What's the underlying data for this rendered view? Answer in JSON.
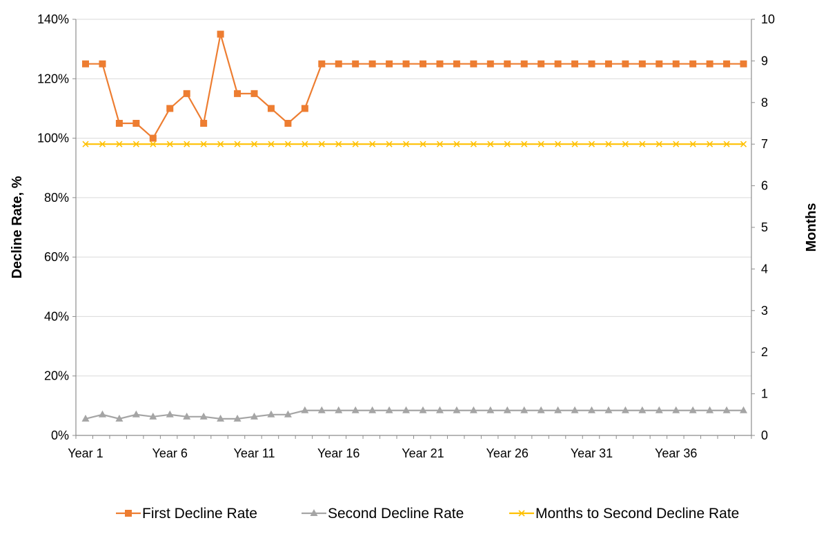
{
  "chart_data": {
    "type": "line",
    "title": "",
    "xlabel": "",
    "ylabel": "Decline Rate, %",
    "y2label": "Months",
    "ylim": [
      0,
      140
    ],
    "y2lim": [
      0,
      10
    ],
    "yticks": [
      "0%",
      "20%",
      "40%",
      "60%",
      "80%",
      "100%",
      "120%",
      "140%"
    ],
    "y2ticks": [
      "0",
      "1",
      "2",
      "3",
      "4",
      "5",
      "6",
      "7",
      "8",
      "9",
      "10"
    ],
    "xtick_labels": [
      "Year 1",
      "Year 6",
      "Year 11",
      "Year 16",
      "Year 21",
      "Year 26",
      "Year 31",
      "Year 36"
    ],
    "categories": [
      "Year 1",
      "Year 2",
      "Year 3",
      "Year 4",
      "Year 5",
      "Year 6",
      "Year 7",
      "Year 8",
      "Year 9",
      "Year 10",
      "Year 11",
      "Year 12",
      "Year 13",
      "Year 14",
      "Year 15",
      "Year 16",
      "Year 17",
      "Year 18",
      "Year 19",
      "Year 20",
      "Year 21",
      "Year 22",
      "Year 23",
      "Year 24",
      "Year 25",
      "Year 26",
      "Year 27",
      "Year 28",
      "Year 29",
      "Year 30",
      "Year 31",
      "Year 32",
      "Year 33",
      "Year 34",
      "Year 35",
      "Year 36",
      "Year 37",
      "Year 38",
      "Year 39",
      "Year 40"
    ],
    "grid": true,
    "legend_position": "bottom",
    "series": [
      {
        "name": "First Decline Rate",
        "axis": "left",
        "color": "#ED7D31",
        "marker": "square",
        "values": [
          125,
          125,
          105,
          105,
          100,
          110,
          115,
          105,
          135,
          115,
          115,
          110,
          105,
          110,
          125,
          125,
          125,
          125,
          125,
          125,
          125,
          125,
          125,
          125,
          125,
          125,
          125,
          125,
          125,
          125,
          125,
          125,
          125,
          125,
          125,
          125,
          125,
          125,
          125,
          125
        ]
      },
      {
        "name": "Second Decline Rate",
        "axis": "left",
        "color": "#A5A5A5",
        "marker": "triangle",
        "values": [
          5.6,
          7,
          5.6,
          7,
          6.3,
          7,
          6.3,
          6.3,
          5.6,
          5.6,
          6.3,
          7,
          7,
          8.4,
          8.4,
          8.4,
          8.4,
          8.4,
          8.4,
          8.4,
          8.4,
          8.4,
          8.4,
          8.4,
          8.4,
          8.4,
          8.4,
          8.4,
          8.4,
          8.4,
          8.4,
          8.4,
          8.4,
          8.4,
          8.4,
          8.4,
          8.4,
          8.4,
          8.4,
          8.4
        ]
      },
      {
        "name": "Months to Second Decline Rate",
        "axis": "right",
        "color": "#FFC000",
        "marker": "x",
        "values": [
          7,
          7,
          7,
          7,
          7,
          7,
          7,
          7,
          7,
          7,
          7,
          7,
          7,
          7,
          7,
          7,
          7,
          7,
          7,
          7,
          7,
          7,
          7,
          7,
          7,
          7,
          7,
          7,
          7,
          7,
          7,
          7,
          7,
          7,
          7,
          7,
          7,
          7,
          7,
          7
        ]
      }
    ]
  }
}
